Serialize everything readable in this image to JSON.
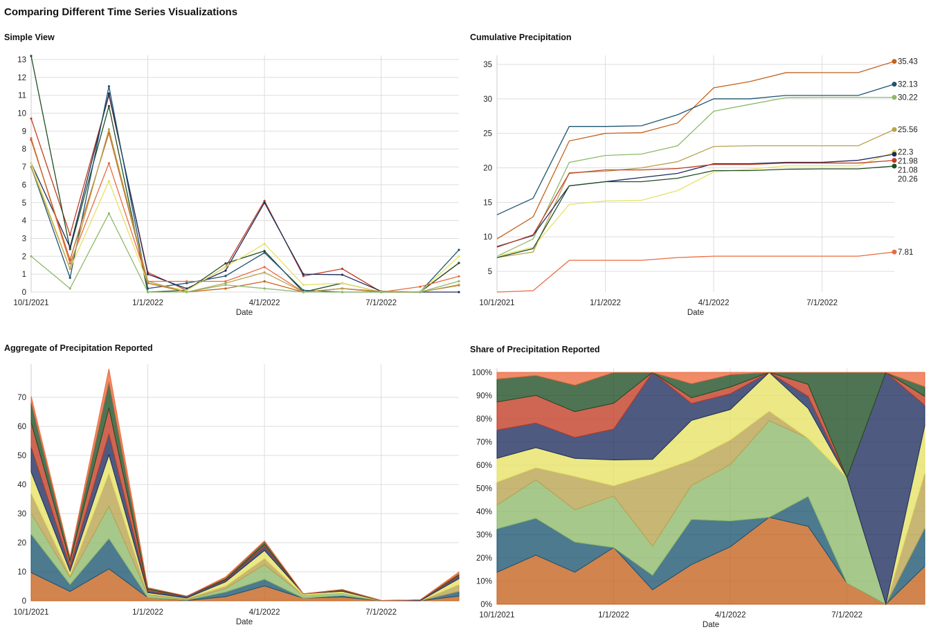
{
  "title": "Comparing Different Time Series Visualizations",
  "x_ticks": [
    "10/1/2021",
    "1/1/2022",
    "4/1/2022",
    "7/1/2022"
  ],
  "series_colors": [
    "#c4611c",
    "#1b5470",
    "#8db96a",
    "#b8a24e",
    "#e6e163",
    "#1c2b5c",
    "#c23b22",
    "#1e4d23",
    "#ea6a3f"
  ],
  "chart_data": [
    {
      "type": "line",
      "title": "Simple View",
      "xlabel": "Date",
      "ylim": [
        0,
        13
      ],
      "y_ticks": [
        0,
        1,
        2,
        3,
        4,
        5,
        6,
        7,
        8,
        9,
        10,
        11,
        12,
        13
      ],
      "series_colors": [
        "#c23b22",
        "#1e4d23",
        "#1c2b5c",
        "#1b5470",
        "#e6e163",
        "#ea6a3f",
        "#c4611c",
        "#b8a24e",
        "#8db96a"
      ],
      "grid": true
    },
    {
      "type": "line",
      "title": "Cumulative Precipitation",
      "xlabel": "Date",
      "ylim": [
        2,
        35.7
      ],
      "y_ticks": [
        5,
        10,
        15,
        20,
        25,
        30,
        35
      ],
      "end_labels": [
        "35.43",
        "32.13",
        "30.22",
        "25.56",
        "22.3",
        "21.98",
        "21.08",
        "20.26",
        "7.81"
      ],
      "grid": true
    },
    {
      "type": "area",
      "title": "Aggregate of Precipitation Reported",
      "xlabel": "Date",
      "stacked": true,
      "ylim": [
        0,
        80
      ],
      "y_ticks": [
        0,
        10,
        20,
        30,
        40,
        50,
        60,
        70
      ],
      "grid": true
    },
    {
      "type": "area",
      "title": "Share of Precipitation Reported",
      "xlabel": "Date",
      "stacked": "percent",
      "ylim": [
        0,
        100
      ],
      "y_ticks": [
        "0%",
        "10%",
        "20%",
        "30%",
        "40%",
        "50%",
        "60%",
        "70%",
        "80%",
        "90%",
        "100%"
      ],
      "grid": true
    }
  ],
  "dates": [
    "10/1/2021",
    "11/1/2021",
    "12/1/2021",
    "1/1/2022",
    "2/1/2022",
    "3/1/2022",
    "4/1/2022",
    "5/1/2022",
    "6/1/2022",
    "7/1/2022",
    "8/1/2022",
    "9/1/2022"
  ],
  "monthly_values": [
    [
      9.7,
      3.2,
      11.0,
      1.1,
      0.1,
      1.4,
      5.1,
      0.9,
      1.3,
      0.01,
      0,
      1.62
    ],
    [
      13.2,
      2.4,
      10.4,
      0,
      0.1,
      1.6,
      2.3,
      0,
      0.5,
      0,
      0,
      1.63
    ],
    [
      7.2,
      2.5,
      11.1,
      1.0,
      0.2,
      1.2,
      5.0,
      1.0,
      0.97,
      0.05,
      0,
      0
    ],
    [
      7.0,
      0.8,
      11.5,
      0.2,
      0.5,
      0.9,
      2.2,
      0.1,
      0,
      0,
      0,
      2.36
    ],
    [
      7.2,
      1.3,
      6.2,
      0.5,
      0.1,
      1.4,
      2.7,
      0.4,
      0.5,
      0,
      0,
      2.0
    ],
    [
      8.6,
      1.6,
      7.2,
      0.6,
      0.6,
      0.6,
      1.4,
      0,
      0.2,
      0,
      0.3,
      0.88
    ],
    [
      8.5,
      1.8,
      8.9,
      0.5,
      0,
      0.2,
      0.6,
      0,
      0.2,
      0,
      0,
      0.38
    ],
    [
      7.0,
      1.3,
      9.1,
      0.6,
      0,
      0.5,
      1.1,
      0,
      0.2,
      0.05,
      0,
      0.41
    ],
    [
      2.0,
      0.2,
      4.4,
      0,
      0,
      0.4,
      0.2,
      0,
      0,
      0,
      0,
      0.61
    ]
  ]
}
